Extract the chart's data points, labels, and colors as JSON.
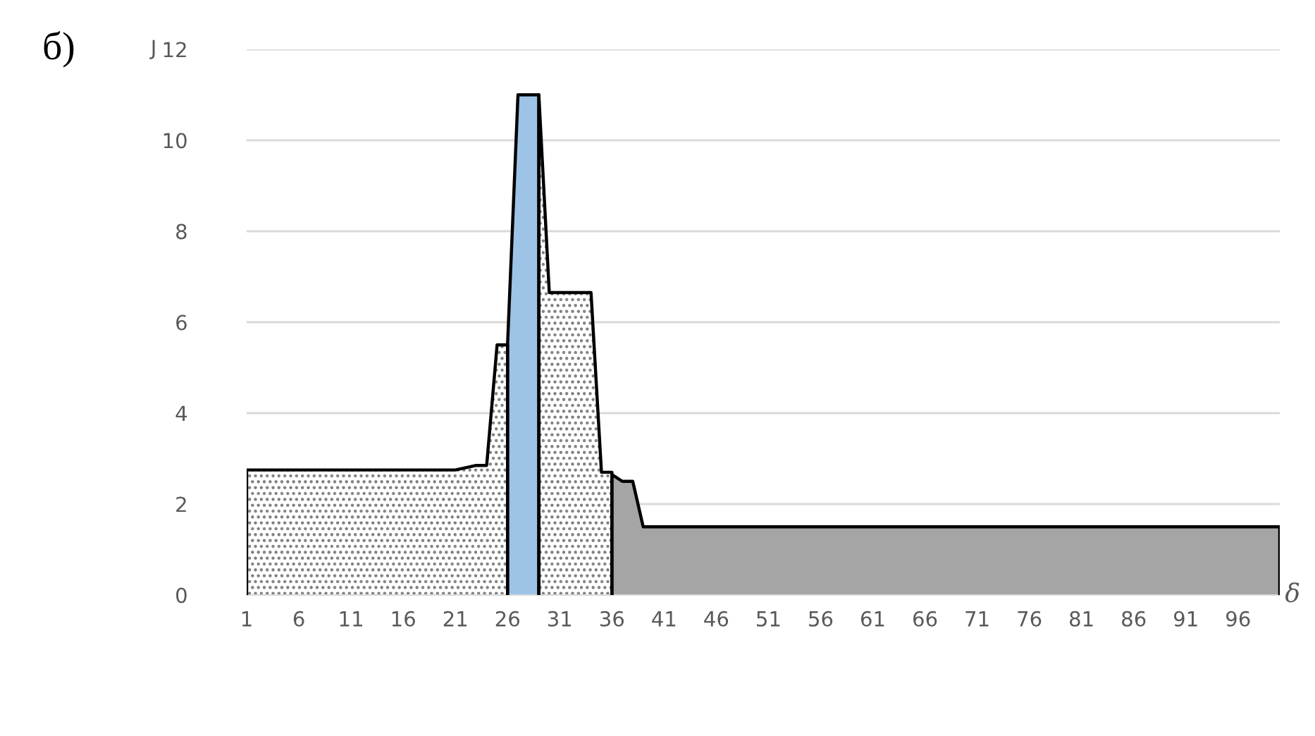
{
  "chart_data": {
    "type": "area",
    "title": "б)",
    "xlabel": "δ",
    "ylabel": "J",
    "categories": [
      "1",
      null,
      null,
      null,
      null,
      "6",
      null,
      null,
      null,
      null,
      "11",
      null,
      null,
      null,
      null,
      "16",
      null,
      null,
      null,
      null,
      "21",
      null,
      null,
      null,
      null,
      "26",
      null,
      null,
      null,
      null,
      "31",
      null,
      null,
      null,
      null,
      "36",
      null,
      null,
      null,
      null,
      "41",
      null,
      null,
      null,
      null,
      "46",
      null,
      null,
      null,
      null,
      "51",
      null,
      null,
      null,
      null,
      "56",
      null,
      null,
      null,
      null,
      "61",
      null,
      null,
      null,
      null,
      "66",
      null,
      null,
      null,
      null,
      "71",
      null,
      null,
      null,
      null,
      "76",
      null,
      null,
      null,
      null,
      "81",
      null,
      null,
      null,
      null,
      "86",
      null,
      null,
      null,
      null,
      "91",
      null,
      null,
      null,
      null,
      "96",
      null,
      null,
      null,
      null
    ],
    "series": [
      {
        "color": "#ffffff",
        "values": [
          2.75,
          2.75,
          2.75,
          2.75,
          2.75,
          2.75,
          2.75,
          2.75,
          2.75,
          2.75,
          2.75,
          2.75,
          2.75,
          2.75,
          2.75,
          2.75,
          2.75,
          2.75,
          2.75,
          2.75,
          2.75,
          2.8,
          2.85,
          2.85,
          5.5,
          5.5,
          null,
          null,
          11,
          6.65,
          6.65,
          6.65,
          6.65,
          6.65,
          2.7,
          2.7,
          null,
          null,
          null,
          null,
          null,
          null,
          null,
          null,
          null,
          null,
          null,
          null,
          null,
          null,
          null,
          null,
          null,
          null,
          null,
          null,
          null,
          null,
          null,
          null,
          null,
          null,
          null,
          null,
          null,
          null,
          null,
          null,
          null,
          null,
          null,
          null,
          null,
          null,
          null,
          null,
          null,
          null,
          null,
          null,
          null,
          null,
          null,
          null,
          null,
          null,
          null,
          null,
          null,
          null,
          null,
          null,
          null,
          null,
          null,
          null,
          null,
          null,
          null,
          null
        ]
      },
      {
        "color": "#9dc3e6",
        "values": [
          null,
          null,
          null,
          null,
          null,
          null,
          null,
          null,
          null,
          null,
          null,
          null,
          null,
          null,
          null,
          null,
          null,
          null,
          null,
          null,
          null,
          null,
          null,
          null,
          null,
          5.5,
          11,
          11,
          11,
          null,
          null,
          null,
          null,
          null,
          null,
          null,
          null,
          null,
          null,
          null,
          null,
          null,
          null,
          null,
          null,
          null,
          null,
          null,
          null,
          null,
          null,
          null,
          null,
          null,
          null,
          null,
          null,
          null,
          null,
          null,
          null,
          null,
          null,
          null,
          null,
          null,
          null,
          null,
          null,
          null,
          null,
          null,
          null,
          null,
          null,
          null,
          null,
          null,
          null,
          null,
          null,
          null,
          null,
          null,
          null,
          null,
          null,
          null,
          null,
          null,
          null,
          null,
          null,
          null,
          null,
          null,
          null,
          null,
          null,
          null
        ]
      },
      {
        "color": "#a5a5a5",
        "values": [
          null,
          null,
          null,
          null,
          null,
          null,
          null,
          null,
          null,
          null,
          null,
          null,
          null,
          null,
          null,
          null,
          null,
          null,
          null,
          null,
          null,
          null,
          null,
          null,
          null,
          null,
          null,
          null,
          null,
          null,
          null,
          null,
          null,
          null,
          null,
          2.65,
          2.5,
          2.5,
          1.5,
          1.5,
          1.5,
          1.5,
          1.5,
          1.5,
          1.5,
          1.5,
          1.5,
          1.5,
          1.5,
          1.5,
          1.5,
          1.5,
          1.5,
          1.5,
          1.5,
          1.5,
          1.5,
          1.5,
          1.5,
          1.5,
          1.5,
          1.5,
          1.5,
          1.5,
          1.5,
          1.5,
          1.5,
          1.5,
          1.5,
          1.5,
          1.5,
          1.5,
          1.5,
          1.5,
          1.5,
          1.5,
          1.5,
          1.5,
          1.5,
          1.5,
          1.5,
          1.5,
          1.5,
          1.5,
          1.5,
          1.5,
          1.5,
          1.5,
          1.5,
          1.5,
          1.5,
          1.5,
          1.5,
          1.5,
          1.5,
          1.5,
          1.5,
          1.5,
          1.5,
          1.5
        ]
      }
    ],
    "ylim": [
      0,
      12
    ],
    "yticks": [
      0,
      2,
      4,
      6,
      8,
      10,
      12
    ],
    "grid": "y",
    "legend": false
  }
}
